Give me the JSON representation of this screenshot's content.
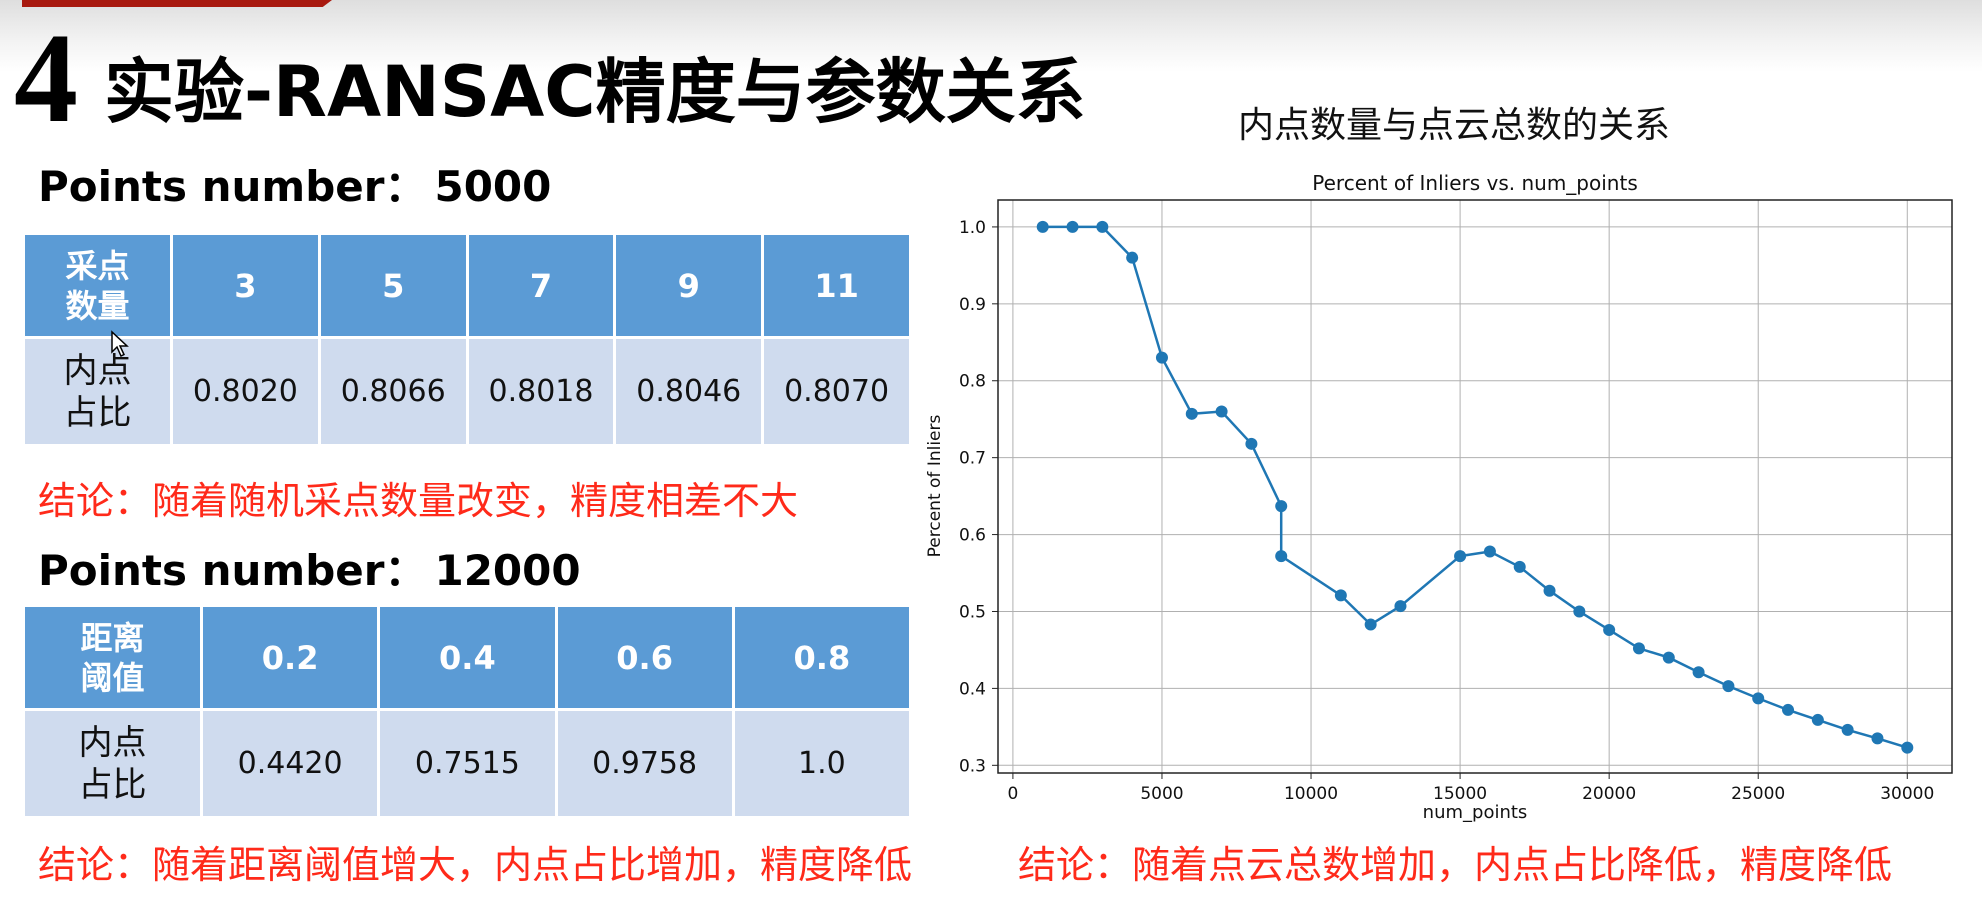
{
  "slide": {
    "number": "4",
    "title": "实验-RANSAC精度与参数关系"
  },
  "section1": {
    "heading_label": "Points number：",
    "heading_value": "5000",
    "row_header_1": "采点\n数量",
    "row_header_2": "内点\n占比",
    "columns": [
      "3",
      "5",
      "7",
      "9",
      "11"
    ],
    "values": [
      "0.8020",
      "0.8066",
      "0.8018",
      "0.8046",
      "0.8070"
    ],
    "conclusion": "结论：随着随机采点数量改变，精度相差不大"
  },
  "section2": {
    "heading_label": "Points number：",
    "heading_value": "12000",
    "row_header_1": "距离\n阈值",
    "row_header_2": "内点\n占比",
    "columns": [
      "0.2",
      "0.4",
      "0.6",
      "0.8"
    ],
    "values": [
      "0.4420",
      "0.7515",
      "0.9758",
      "1.0"
    ],
    "conclusion": "结论：随着距离阈值增大，内点占比增加，精度降低"
  },
  "chart_section": {
    "caption": "内点数量与点云总数的关系",
    "conclusion": "结论：随着点云总数增加，内点占比降低，精度降低"
  },
  "chart_data": {
    "type": "line",
    "title": "Percent of Inliers vs. num_points",
    "xlabel": "num_points",
    "ylabel": "Percent of Inliers",
    "xlim": [
      -500,
      31500
    ],
    "ylim": [
      0.29,
      1.035
    ],
    "xticks": [
      "0",
      "5000",
      "10000",
      "15000",
      "20000",
      "25000",
      "30000"
    ],
    "yticks": [
      "0.3",
      "0.4",
      "0.5",
      "0.6",
      "0.7",
      "0.8",
      "0.9",
      "1.0"
    ],
    "grid": true,
    "line_color": "#1f77b4",
    "x": [
      1000,
      2000,
      3000,
      4000,
      5000,
      6000,
      7000,
      8000,
      9000,
      9000,
      11000,
      12000,
      13000,
      15000,
      16000,
      17000,
      18000,
      19000,
      20000,
      21000,
      22000,
      23000,
      24000,
      25000,
      26000,
      27000,
      28000,
      29000,
      30000
    ],
    "y": [
      1.0,
      1.0,
      1.0,
      0.96,
      0.83,
      0.757,
      0.76,
      0.718,
      0.637,
      0.572,
      0.521,
      0.483,
      0.507,
      0.572,
      0.578,
      0.558,
      0.527,
      0.5,
      0.476,
      0.452,
      0.44,
      0.421,
      0.403,
      0.387,
      0.372,
      0.359,
      0.346,
      0.335,
      0.323
    ]
  },
  "icons": {
    "cursor": "mouse-pointer-icon"
  }
}
